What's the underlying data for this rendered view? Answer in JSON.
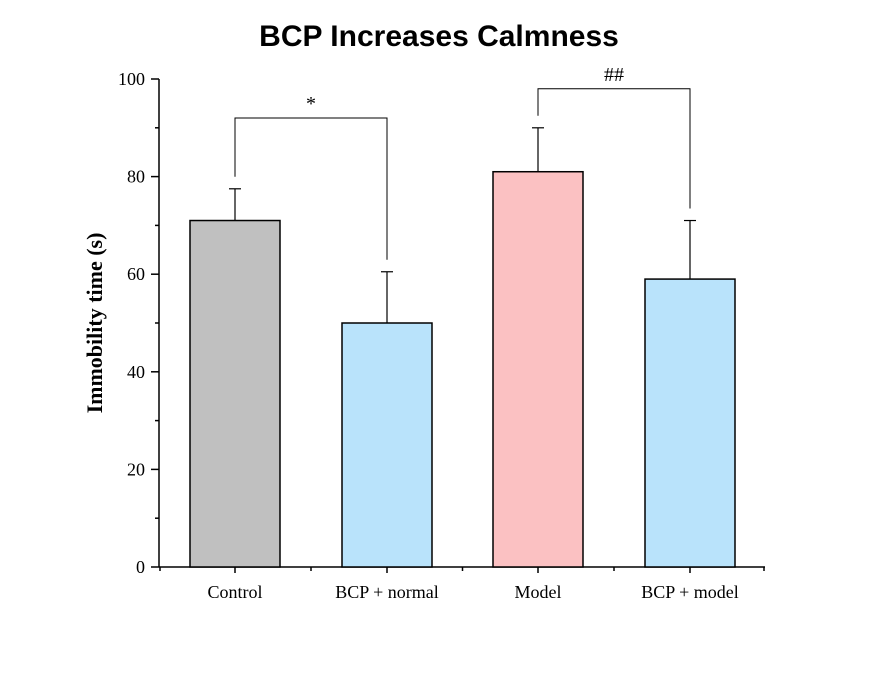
{
  "chart_data": {
    "type": "bar",
    "title": "BCP Increases Calmness",
    "xlabel": "",
    "ylabel": "Immobility time (s)",
    "ylim": [
      0,
      100
    ],
    "yticks": [
      "0",
      "20",
      "40",
      "60",
      "80",
      "100"
    ],
    "categories": [
      "Control",
      "BCP + normal",
      "Model",
      "BCP + model"
    ],
    "values": [
      71,
      50,
      81,
      59
    ],
    "errors": [
      6.5,
      10.5,
      9,
      12
    ],
    "colors": [
      "#c0c0c0",
      "#b9e3fb",
      "#fbc1c2",
      "#b9e3fb"
    ],
    "significance": [
      {
        "from": 0,
        "to": 1,
        "label": "*",
        "level": 92
      },
      {
        "from": 2,
        "to": 3,
        "label": "##",
        "level": 98
      }
    ]
  }
}
